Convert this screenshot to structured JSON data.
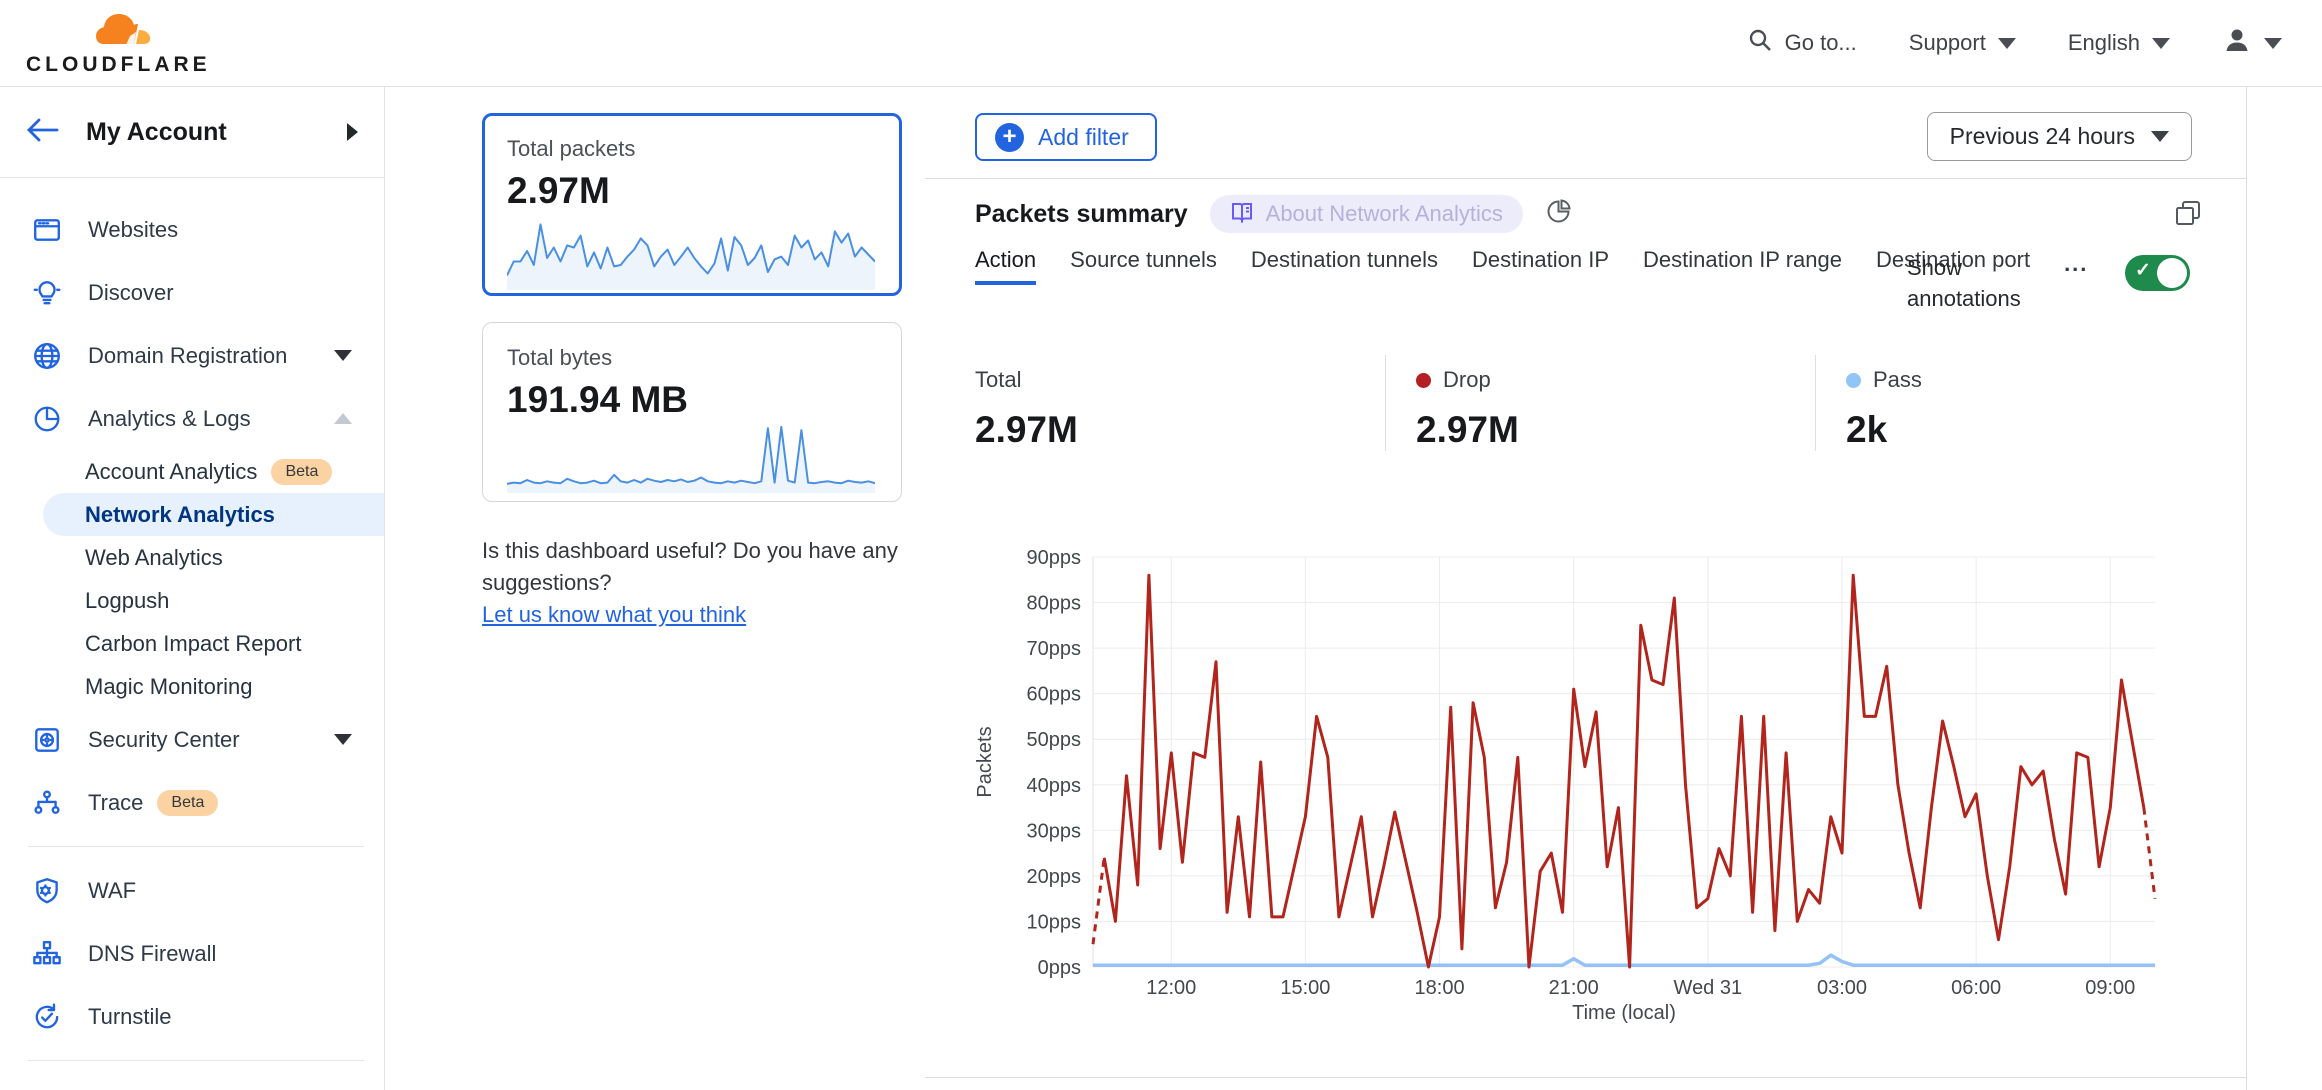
{
  "header": {
    "logo_text": "CLOUDFLARE",
    "goto_label": "Go to...",
    "support_label": "Support",
    "language_label": "English"
  },
  "sidebar": {
    "account_label": "My Account",
    "nav": [
      {
        "label": "Websites",
        "icon": "browser-icon"
      },
      {
        "label": "Discover",
        "icon": "lightbulb-icon"
      },
      {
        "label": "Domain Registration",
        "icon": "globe-icon",
        "chevron": "down"
      },
      {
        "label": "Analytics & Logs",
        "icon": "pie-icon",
        "chevron": "up",
        "children": [
          {
            "label": "Account Analytics",
            "badge": "Beta"
          },
          {
            "label": "Network Analytics",
            "selected": true
          },
          {
            "label": "Web Analytics"
          },
          {
            "label": "Logpush"
          },
          {
            "label": "Carbon Impact Report"
          },
          {
            "label": "Magic Monitoring"
          }
        ]
      },
      {
        "label": "Security Center",
        "icon": "safe-icon",
        "chevron": "down"
      },
      {
        "label": "Trace",
        "icon": "trace-icon",
        "badge": "Beta"
      },
      {
        "divider": true
      },
      {
        "label": "WAF",
        "icon": "shield-gear-icon"
      },
      {
        "label": "DNS Firewall",
        "icon": "hierarchy-icon"
      },
      {
        "label": "Turnstile",
        "icon": "rotate-check-icon"
      },
      {
        "divider": true
      },
      {
        "label": "",
        "icon": "starburst-icon",
        "partial": true
      }
    ]
  },
  "summary_cards": [
    {
      "title": "Total packets",
      "value": "2.97M",
      "selected": true,
      "spark": [
        15,
        35,
        35,
        50,
        30,
        88,
        40,
        55,
        35,
        58,
        55,
        72,
        28,
        48,
        25,
        55,
        28,
        30,
        42,
        52,
        68,
        58,
        28,
        42,
        52,
        30,
        42,
        55,
        40,
        28,
        18,
        32,
        68,
        22,
        70,
        58,
        30,
        40,
        58,
        20,
        38,
        42,
        30,
        72,
        55,
        65,
        38,
        48,
        28,
        78,
        62,
        75,
        42,
        55,
        45,
        35
      ]
    },
    {
      "title": "Total bytes",
      "value": "191.94 MB",
      "selected": false,
      "spark": [
        8,
        10,
        9,
        14,
        10,
        9,
        12,
        10,
        9,
        16,
        12,
        9,
        10,
        13,
        9,
        10,
        22,
        12,
        10,
        14,
        10,
        16,
        13,
        11,
        14,
        12,
        15,
        11,
        13,
        18,
        12,
        10,
        9,
        12,
        10,
        13,
        11,
        9,
        12,
        95,
        10,
        97,
        13,
        10,
        92,
        10,
        9,
        11,
        12,
        10,
        9,
        13,
        11,
        10,
        12,
        9
      ]
    }
  ],
  "feedback": {
    "question_line1": "Is this dashboard useful? Do you have any",
    "question_line2": "suggestions?",
    "link": "Let us know what you think"
  },
  "main": {
    "add_filter_label": "Add filter",
    "time_range_label": "Previous 24 hours",
    "panel_title": "Packets summary",
    "about_badge": "About Network Analytics",
    "tabs": [
      "Action",
      "Source tunnels",
      "Destination tunnels",
      "Destination IP",
      "Destination IP range",
      "Destination port"
    ],
    "active_tab": "Action",
    "tabs_more": "...",
    "annotations_line1": "Show",
    "annotations_line2": "annotations",
    "annotations_on": true,
    "stats": [
      {
        "label": "Total",
        "value": "2.97M",
        "dot": null
      },
      {
        "label": "Drop",
        "value": "2.97M",
        "dot": "#b41f24"
      },
      {
        "label": "Pass",
        "value": "2k",
        "dot": "#92c5f7"
      }
    ]
  },
  "colors": {
    "accent_blue": "#2264e0",
    "selected_navy": "#003681",
    "drop_red": "#b2251c",
    "pass_blue": "#94c1f6",
    "toggle_green": "#1e8a4b",
    "spark_blue": "#4a90e2"
  },
  "chart_data": {
    "type": "line",
    "title": "Packets summary",
    "xlabel": "Time (local)",
    "ylabel": "Packets",
    "unit": "pps",
    "ylim": [
      0,
      90
    ],
    "grid": true,
    "y_ticks": [
      0,
      10,
      20,
      30,
      40,
      50,
      60,
      70,
      80,
      90
    ],
    "y_tick_labels": [
      "0pps",
      "10pps",
      "20pps",
      "30pps",
      "40pps",
      "50pps",
      "60pps",
      "70pps",
      "80pps",
      "90pps"
    ],
    "x_interval_minutes": 15,
    "x_ticks": [
      {
        "label": "12:00",
        "index": 7
      },
      {
        "label": "15:00",
        "index": 19
      },
      {
        "label": "18:00",
        "index": 31
      },
      {
        "label": "21:00",
        "index": 43
      },
      {
        "label": "Wed 31",
        "index": 55
      },
      {
        "label": "03:00",
        "index": 67
      },
      {
        "label": "06:00",
        "index": 79
      },
      {
        "label": "09:00",
        "index": 91
      }
    ],
    "series": [
      {
        "name": "Drop",
        "color": "#b2251c",
        "dashed_ends": true,
        "values": [
          5,
          24,
          10,
          42,
          18,
          86,
          26,
          47,
          23,
          47,
          46,
          67,
          12,
          33,
          11,
          45,
          11,
          11,
          22,
          33,
          55,
          46,
          11,
          22,
          33,
          11,
          22,
          34,
          23,
          12,
          0,
          11,
          57,
          4,
          58,
          46,
          13,
          23,
          46,
          0,
          21,
          25,
          12,
          61,
          44,
          56,
          22,
          35,
          0,
          75,
          63,
          62,
          81,
          40,
          13,
          15,
          26,
          20,
          55,
          12,
          55,
          8,
          47,
          10,
          17,
          14,
          33,
          25,
          86,
          55,
          55,
          66,
          40,
          25,
          13,
          35,
          54,
          44,
          33,
          38,
          20,
          6,
          22,
          44,
          40,
          43,
          28,
          16,
          47,
          46,
          22,
          35,
          63,
          49,
          35,
          15
        ]
      },
      {
        "name": "Pass",
        "color": "#94c1f6",
        "dashed_ends": false,
        "values": [
          0.4,
          0.4,
          0.4,
          0.4,
          0.4,
          0.4,
          0.4,
          0.4,
          0.4,
          0.4,
          0.4,
          0.4,
          0.4,
          0.4,
          0.4,
          0.4,
          0.4,
          0.4,
          0.4,
          0.4,
          0.4,
          0.4,
          0.4,
          0.4,
          0.4,
          0.4,
          0.4,
          0.4,
          0.4,
          0.4,
          0.4,
          0.4,
          0.4,
          0.4,
          0.4,
          0.4,
          0.4,
          0.4,
          0.4,
          0.4,
          0.4,
          0.4,
          0.4,
          1.8,
          0.4,
          0.4,
          0.4,
          0.4,
          0.4,
          0.4,
          0.4,
          0.4,
          0.4,
          0.4,
          0.4,
          0.4,
          0.4,
          0.4,
          0.4,
          0.4,
          0.4,
          0.4,
          0.4,
          0.4,
          0.4,
          0.8,
          2.6,
          1.2,
          0.4,
          0.4,
          0.4,
          0.4,
          0.4,
          0.4,
          0.4,
          0.4,
          0.4,
          0.4,
          0.4,
          0.4,
          0.4,
          0.4,
          0.4,
          0.4,
          0.4,
          0.4,
          0.4,
          0.4,
          0.4,
          0.4,
          0.4,
          0.4,
          0.4,
          0.4,
          0.4,
          0.4
        ]
      }
    ]
  }
}
